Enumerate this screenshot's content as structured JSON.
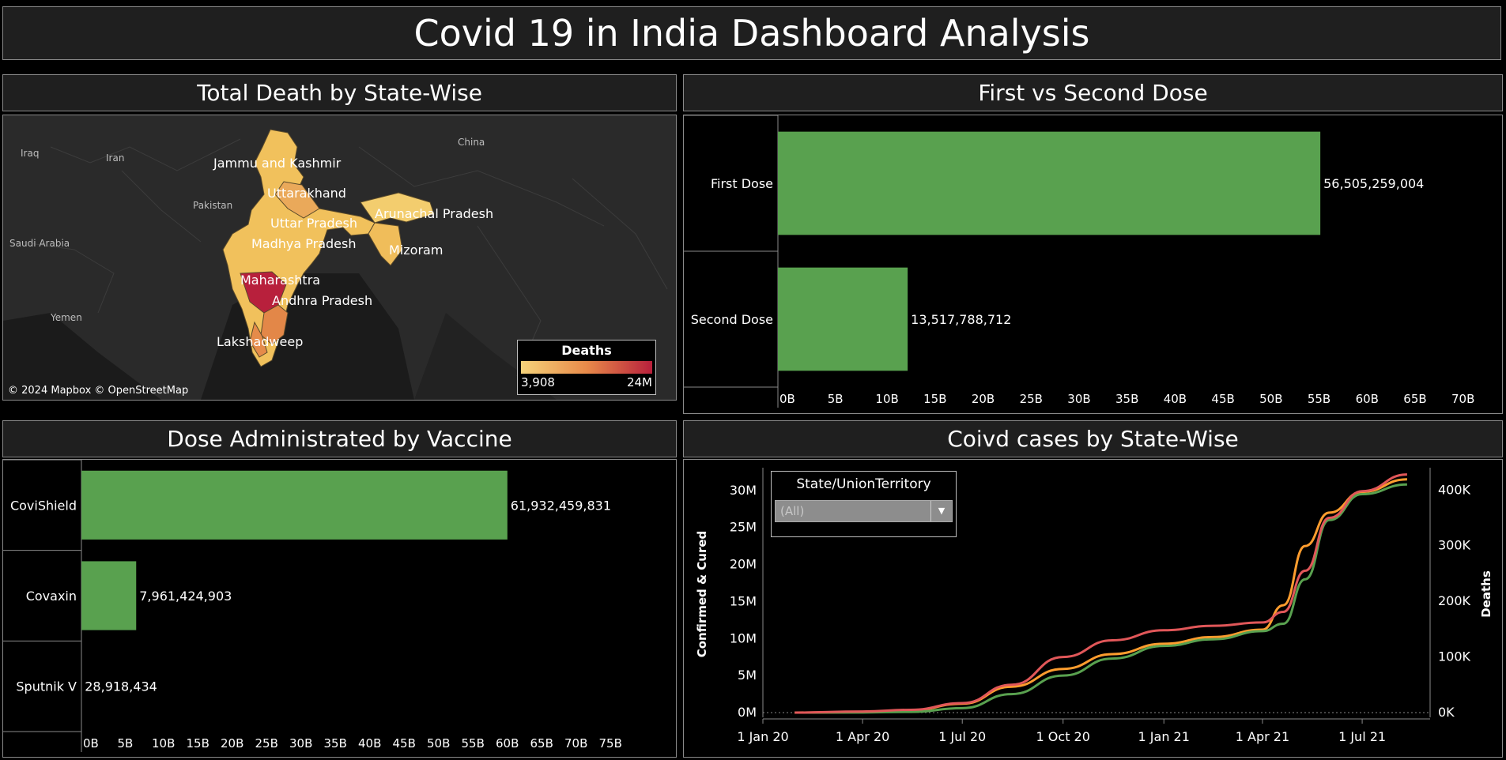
{
  "dashboard": {
    "title": "Covid 19 in India Dashboard Analysis"
  },
  "panels": {
    "map": {
      "title": "Total Death by State-Wise"
    },
    "dose": {
      "title": "First vs Second Dose"
    },
    "vaccine": {
      "title": "Dose Administrated by Vaccine"
    },
    "cases": {
      "title": "Coivd cases by State-Wise"
    }
  },
  "map": {
    "country_labels": [
      "Iraq",
      "Iran",
      "Pakistan",
      "Saudi Arabia",
      "Yemen",
      "China"
    ],
    "state_labels": [
      "Jammu and Kashmir",
      "Uttarakhand",
      "Arunachal Pradesh",
      "Uttar Pradesh",
      "Madhya Pradesh",
      "Mizoram",
      "Maharashtra",
      "Andhra Pradesh",
      "Lakshadweep"
    ],
    "attribution": "© 2024 Mapbox © OpenStreetMap",
    "legend": {
      "title": "Deaths",
      "min": "3,908",
      "max": "24M"
    },
    "colors": {
      "low": "#f5d37a",
      "mid": "#e88a4a",
      "high": "#b8203c"
    }
  },
  "chart_data": [
    {
      "type": "bar",
      "orientation": "horizontal",
      "categories": [
        "First Dose",
        "Second Dose"
      ],
      "values": [
        56505259004,
        13517788712
      ],
      "value_labels": [
        "56,505,259,004",
        "13,517,788,712"
      ],
      "xlim": [
        0,
        70000000000
      ],
      "tick_values": [
        0,
        5,
        10,
        15,
        20,
        25,
        30,
        35,
        40,
        45,
        50,
        55,
        60,
        65,
        70
      ],
      "tick_labels": [
        "0B",
        "5B",
        "10B",
        "15B",
        "20B",
        "25B",
        "30B",
        "35B",
        "40B",
        "45B",
        "50B",
        "55B",
        "60B",
        "65B",
        "70B"
      ],
      "color": "#59a14f"
    },
    {
      "type": "bar",
      "orientation": "horizontal",
      "categories": [
        "CoviShield",
        "Covaxin",
        "Sputnik V"
      ],
      "values": [
        61932459831,
        7961424903,
        28918434
      ],
      "value_labels": [
        "61,932,459,831",
        "7,961,424,903",
        "28,918,434"
      ],
      "xlim": [
        0,
        80000000000
      ],
      "tick_values": [
        0,
        5,
        10,
        15,
        20,
        25,
        30,
        35,
        40,
        45,
        50,
        55,
        60,
        65,
        70,
        75
      ],
      "tick_labels": [
        "0B",
        "5B",
        "10B",
        "15B",
        "20B",
        "25B",
        "30B",
        "35B",
        "40B",
        "45B",
        "50B",
        "55B",
        "60B",
        "65B",
        "70B",
        "75B"
      ],
      "color": "#59a14f"
    },
    {
      "type": "line",
      "x_ticks": [
        "1 Jan 20",
        "1 Apr 20",
        "1 Jul 20",
        "1 Oct 20",
        "1 Jan 21",
        "1 Apr 21",
        "1 Jul 21"
      ],
      "x": [
        "2020-01-30",
        "2020-04-01",
        "2020-05-15",
        "2020-07-01",
        "2020-08-15",
        "2020-10-01",
        "2020-11-15",
        "2021-01-01",
        "2021-02-15",
        "2021-04-01",
        "2021-04-20",
        "2021-05-10",
        "2021-06-01",
        "2021-07-01",
        "2021-08-11"
      ],
      "ylabel_left": "Confirmed & Cured",
      "ylabel_right": "Deaths",
      "yticks_left": [
        "0M",
        "5M",
        "10M",
        "15M",
        "20M",
        "25M",
        "30M"
      ],
      "yticks_right": [
        "0K",
        "100K",
        "200K",
        "300K",
        "400K"
      ],
      "ylim_left": [
        0,
        32000000
      ],
      "ylim_right": [
        0,
        426000
      ],
      "series": [
        {
          "color": "#ff9d2e",
          "axis": "left",
          "values": [
            0,
            0.05,
            0.3,
            1.2,
            3.5,
            5.9,
            7.9,
            9.3,
            10.2,
            11.2,
            14.5,
            22.5,
            27.0,
            29.8,
            31.5
          ]
        },
        {
          "color": "#59a14f",
          "axis": "left",
          "values": [
            0,
            0.02,
            0.1,
            0.6,
            2.5,
            5.0,
            7.3,
            9.0,
            9.9,
            11.0,
            12.0,
            18.0,
            26.0,
            29.5,
            30.8
          ]
        },
        {
          "color": "#e15759",
          "axis": "right",
          "values": [
            0,
            2,
            5,
            17,
            50,
            100,
            130,
            148,
            156,
            162,
            181,
            255,
            350,
            398,
            428
          ]
        }
      ],
      "filter": {
        "label": "State/UnionTerritory",
        "value": "(All)"
      }
    }
  ]
}
